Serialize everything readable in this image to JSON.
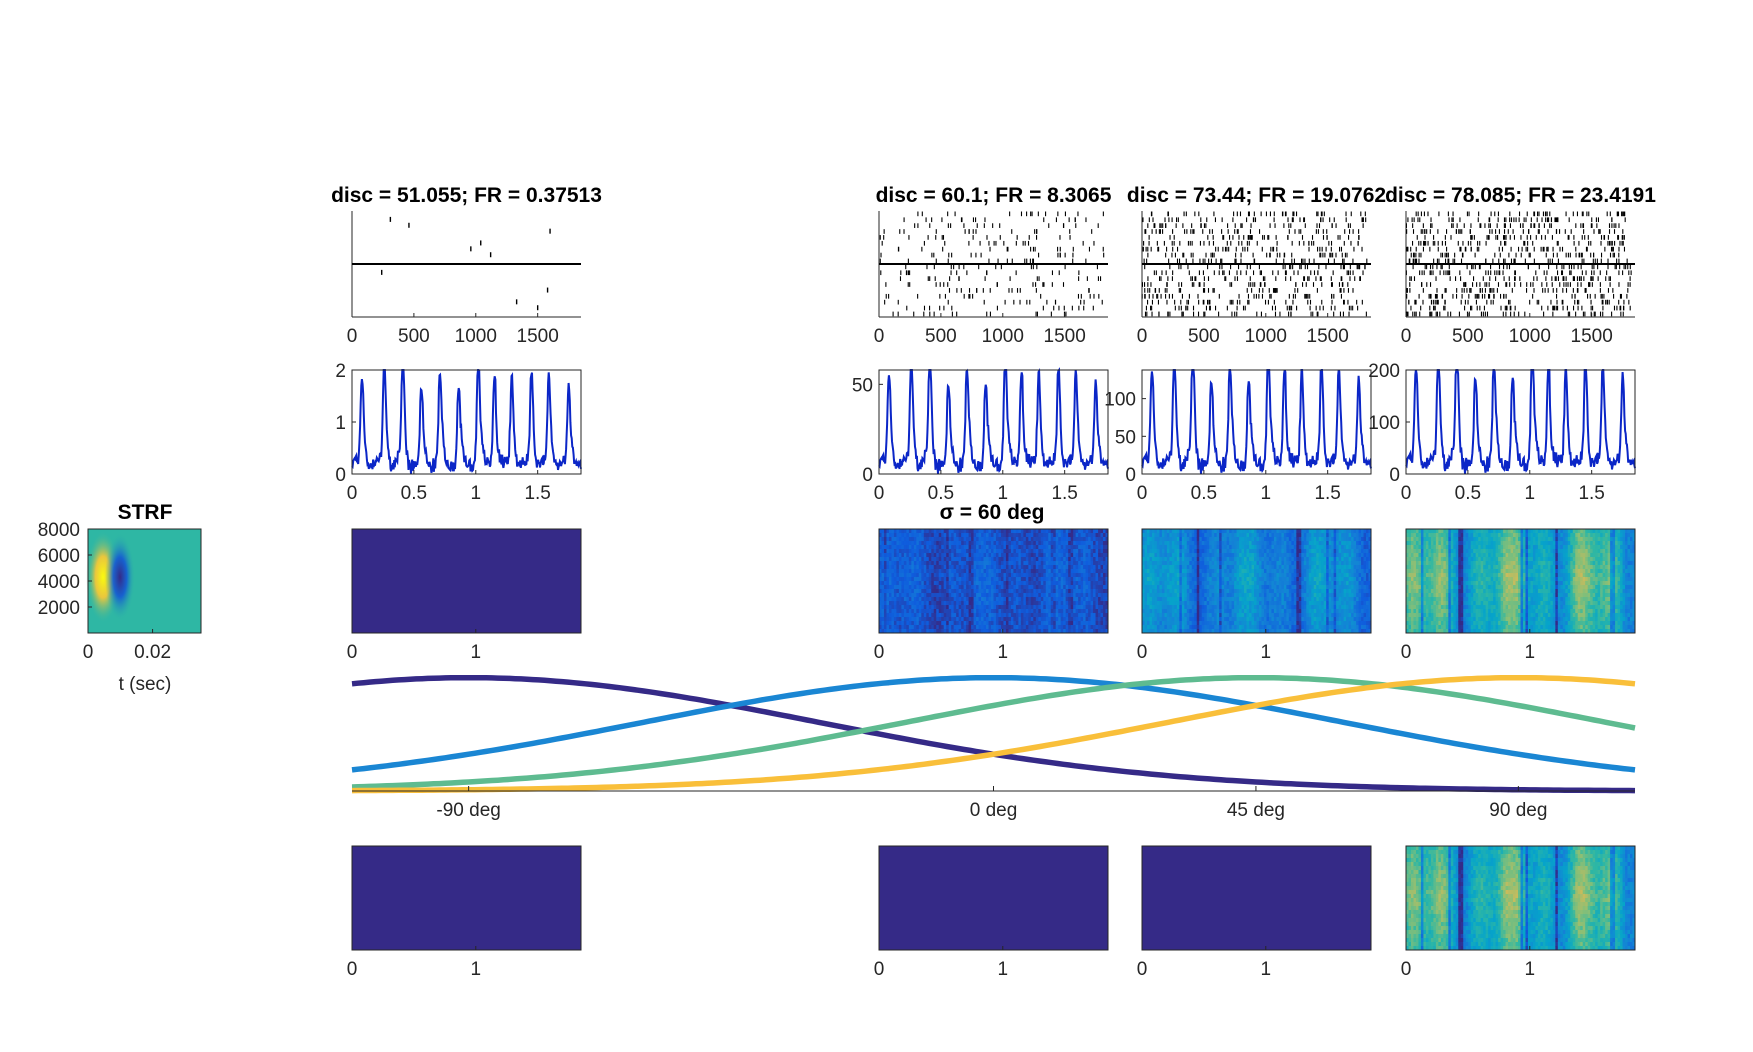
{
  "figure": {
    "colormap": [
      "#352a87",
      "#0f5cdd",
      "#1481d6",
      "#06a4ca",
      "#2eb7a4",
      "#87bf77",
      "#d1bb59",
      "#fec832",
      "#f9fb0e"
    ],
    "strf_label": "STRF",
    "sigma_label": "σ = 60 deg"
  },
  "chart_data": [
    {
      "id": "strf",
      "type": "heatmap",
      "title": "STRF",
      "xlabel": "t (sec)",
      "xlim": [
        0,
        0.035
      ],
      "ylim": [
        0,
        8000
      ],
      "xticks": [
        0,
        0.02
      ],
      "xtick_labels": [
        "0",
        "0.02"
      ],
      "yticks": [
        2000,
        4000,
        6000,
        8000
      ],
      "ytick_labels": [
        "2000",
        "4000",
        "6000",
        "8000"
      ],
      "description_values": {
        "center_freq": 4500,
        "excite_t": 0.005,
        "inhibit_t": 0.011
      }
    },
    {
      "id": "raster",
      "type": "scatter",
      "xlim": [
        0,
        1850
      ],
      "xticks": [
        0,
        500,
        1000,
        1500
      ],
      "xtick_labels": [
        "0",
        "500",
        "1000",
        "1500"
      ],
      "titles": [
        "disc = 51.055; FR = 0.37513",
        "disc = 60.1; FR = 8.3065",
        "disc = 73.44; FR = 19.0762",
        "disc = 78.085; FR = 23.4191"
      ],
      "firing_rates": [
        0.37513,
        8.3065,
        19.0762,
        23.4191
      ],
      "sparse_spikes": [
        [
          310,
          1
        ],
        [
          460,
          2
        ],
        [
          1040,
          5
        ],
        [
          960,
          6
        ],
        [
          1120,
          7
        ],
        [
          1600,
          3
        ],
        [
          240,
          10
        ],
        [
          1330,
          15
        ],
        [
          1580,
          13
        ],
        [
          1500,
          16
        ]
      ]
    },
    {
      "id": "psth",
      "type": "line",
      "xlim": [
        0,
        1.85
      ],
      "xticks": [
        0,
        0.5,
        1,
        1.5
      ],
      "xtick_labels": [
        "0",
        "0.5",
        "1",
        "1.5"
      ],
      "ylims": [
        [
          0,
          2
        ],
        [
          0,
          58
        ],
        [
          0,
          138
        ],
        [
          0,
          200
        ]
      ],
      "yticks": [
        [
          0,
          1,
          2
        ],
        [
          0,
          50
        ],
        [
          0,
          50,
          100
        ],
        [
          0,
          100,
          200
        ]
      ],
      "ytick_labels": [
        [
          "0",
          "1",
          "2"
        ],
        [
          "0",
          "50"
        ],
        [
          "0",
          "50",
          "100"
        ],
        [
          "0",
          "100",
          "200"
        ]
      ],
      "peak_times": [
        0.08,
        0.26,
        0.41,
        0.56,
        0.71,
        0.86,
        1.02,
        1.15,
        1.29,
        1.45,
        1.59,
        1.75
      ],
      "peak_values": [
        1.55,
        1.9,
        2.0,
        1.25,
        1.6,
        1.3,
        2.05,
        1.65,
        1.5,
        1.7,
        1.5,
        1.2
      ],
      "color": "#0b26c7"
    },
    {
      "id": "spectrogram",
      "type": "heatmap",
      "xlim": [
        0,
        1.85
      ],
      "xticks": [
        0,
        1
      ],
      "xtick_labels": [
        "0",
        "1"
      ],
      "row_1_intensity": [
        0.0,
        0.18,
        0.42,
        0.72
      ],
      "row_2_intensity": [
        0.0,
        0.0,
        0.0,
        0.72
      ]
    },
    {
      "id": "tuning",
      "type": "line",
      "xlim": [
        -110,
        110
      ],
      "ylim": [
        0,
        1.05
      ],
      "xticks": [
        -90,
        0,
        45,
        90
      ],
      "xtick_labels": [
        "-90 deg",
        "0 deg",
        "45 deg",
        "90 deg"
      ],
      "sigma_deg": 60,
      "series": [
        {
          "center": -90,
          "color": "#352a87"
        },
        {
          "center": 0,
          "color": "#1a86d3"
        },
        {
          "center": 45,
          "color": "#5ebb90"
        },
        {
          "center": 90,
          "color": "#f9bf3a"
        }
      ]
    }
  ]
}
